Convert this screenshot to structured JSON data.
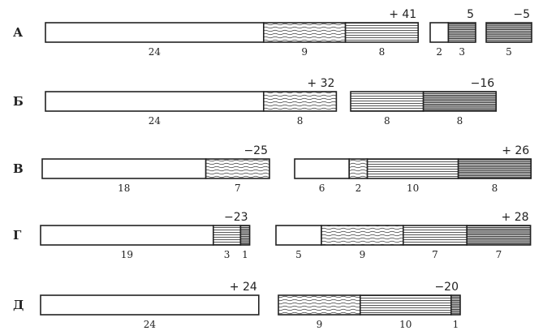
{
  "diagram": {
    "rows": [
      {
        "letter": "А",
        "groups": [
          {
            "total": "+ 41",
            "segments": [
              {
                "value": "24",
                "fill": "blank"
              },
              {
                "value": "9",
                "fill": "wavy"
              },
              {
                "value": "8",
                "fill": "lined"
              }
            ]
          },
          {
            "total": "5",
            "segments": [
              {
                "value": "2",
                "fill": "blank"
              },
              {
                "value": "3",
                "fill": "dense"
              }
            ]
          },
          {
            "total": "−5",
            "segments": [
              {
                "value": "5",
                "fill": "dense"
              }
            ]
          }
        ]
      },
      {
        "letter": "Б",
        "groups": [
          {
            "total": "+ 32",
            "segments": [
              {
                "value": "24",
                "fill": "blank"
              },
              {
                "value": "8",
                "fill": "wavy"
              }
            ]
          },
          {
            "total": "−16",
            "segments": [
              {
                "value": "8",
                "fill": "lined"
              },
              {
                "value": "8",
                "fill": "dense"
              }
            ]
          }
        ]
      },
      {
        "letter": "В",
        "groups": [
          {
            "total": "−25",
            "segments": [
              {
                "value": "18",
                "fill": "blank"
              },
              {
                "value": "7",
                "fill": "wavy"
              }
            ]
          },
          {
            "total": "+ 26",
            "segments": [
              {
                "value": "6",
                "fill": "blank"
              },
              {
                "value": "2",
                "fill": "wavy"
              },
              {
                "value": "10",
                "fill": "lined"
              },
              {
                "value": "8",
                "fill": "dense"
              }
            ]
          }
        ]
      },
      {
        "letter": "Г",
        "groups": [
          {
            "total": "−23",
            "segments": [
              {
                "value": "19",
                "fill": "blank"
              },
              {
                "value": "3",
                "fill": "lined"
              },
              {
                "value": "1",
                "fill": "dense"
              }
            ]
          },
          {
            "total": "+ 28",
            "segments": [
              {
                "value": "5",
                "fill": "blank"
              },
              {
                "value": "9",
                "fill": "wavy"
              },
              {
                "value": "7",
                "fill": "lined"
              },
              {
                "value": "7",
                "fill": "dense"
              }
            ]
          }
        ]
      },
      {
        "letter": "Д",
        "groups": [
          {
            "total": "+ 24",
            "segments": [
              {
                "value": "24",
                "fill": "blank"
              }
            ]
          },
          {
            "total": "−20",
            "segments": [
              {
                "value": "9",
                "fill": "wavy"
              },
              {
                "value": "10",
                "fill": "lined"
              },
              {
                "value": "1",
                "fill": "dense"
              }
            ]
          }
        ]
      }
    ]
  },
  "colors": {
    "ink": "#222222",
    "background": "#ffffff"
  }
}
